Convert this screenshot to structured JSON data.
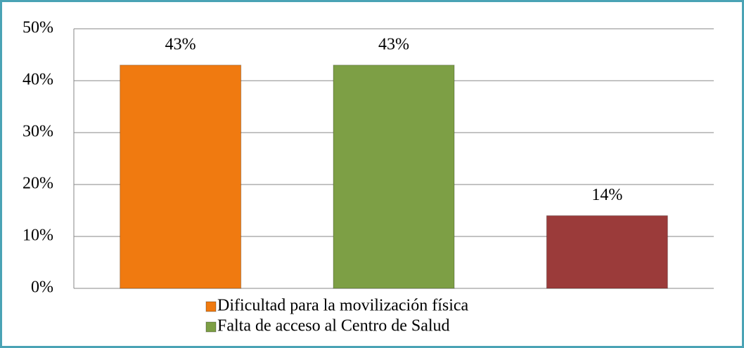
{
  "chart_data": {
    "type": "bar",
    "series": [
      {
        "name": "Dificultad para la movilización física",
        "color": "#f07a10",
        "values": [
          43
        ],
        "value_labels": [
          "43%"
        ]
      },
      {
        "name": "Falta de acceso al Centro de Salud",
        "color": "#7d9f45",
        "values": [
          43
        ],
        "value_labels": [
          "43%"
        ]
      },
      {
        "color": "#9b3b3a",
        "values": [
          14
        ],
        "value_labels": [
          "14%"
        ]
      }
    ],
    "ylim": [
      0,
      50
    ],
    "yticks": [
      {
        "value": 0,
        "label": "0%"
      },
      {
        "value": 10,
        "label": "10%"
      },
      {
        "value": 20,
        "label": "20%"
      },
      {
        "value": 30,
        "label": "30%"
      },
      {
        "value": 40,
        "label": "40%"
      },
      {
        "value": 50,
        "label": "50%"
      }
    ],
    "grid": true
  }
}
